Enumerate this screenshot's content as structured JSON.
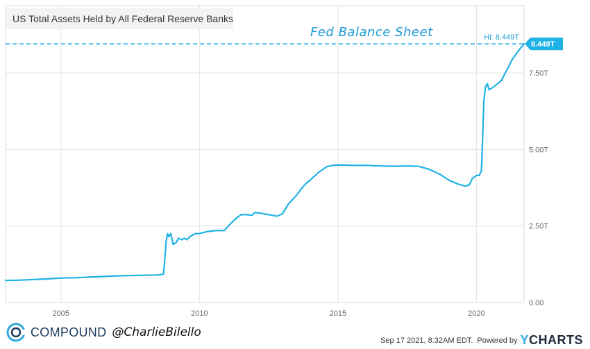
{
  "chart_data": {
    "type": "line",
    "title": "US Total Assets Held by All Federal Reserve Banks",
    "annotation": "Fed Balance Sheet",
    "xlim": [
      2003.0,
      2021.72
    ],
    "ylim": [
      0,
      9.7
    ],
    "x_ticks": [
      2005,
      2010,
      2015,
      2020
    ],
    "x_tick_labels": [
      "2005",
      "2010",
      "2015",
      "2020"
    ],
    "y_ticks": [
      0,
      2.5,
      5.0,
      7.5
    ],
    "y_tick_labels": [
      "0.00",
      "2.50T",
      "5.00T",
      "7.50T"
    ],
    "grid": true,
    "line_color": "#1fb2e6",
    "high": {
      "value": 8.449,
      "label": "Hi: 8.449T",
      "end_label": "8.449T"
    },
    "series": [
      {
        "x": [
          2003.0,
          2003.5,
          2004.0,
          2004.5,
          2005.0,
          2005.5,
          2006.0,
          2006.5,
          2007.0,
          2007.5,
          2008.0,
          2008.5,
          2008.7,
          2008.75,
          2008.8,
          2008.85,
          2008.9,
          2008.97,
          2009.05,
          2009.15,
          2009.25,
          2009.35,
          2009.45,
          2009.55,
          2009.65,
          2009.75,
          2009.85,
          2010.0,
          2010.3,
          2010.6,
          2010.9,
          2011.1,
          2011.3,
          2011.5,
          2011.7,
          2011.9,
          2012.0,
          2012.2,
          2012.5,
          2012.8,
          2013.0,
          2013.2,
          2013.5,
          2013.8,
          2014.0,
          2014.3,
          2014.6,
          2014.9,
          2015.2,
          2015.5,
          2016.0,
          2016.5,
          2017.0,
          2017.5,
          2017.9,
          2018.3,
          2018.7,
          2019.0,
          2019.3,
          2019.6,
          2019.75,
          2019.85,
          2020.0,
          2020.1,
          2020.18,
          2020.22,
          2020.27,
          2020.33,
          2020.4,
          2020.45,
          2020.55,
          2020.7,
          2020.9,
          2021.1,
          2021.3,
          2021.5,
          2021.72
        ],
        "values": [
          0.72,
          0.73,
          0.75,
          0.77,
          0.8,
          0.81,
          0.83,
          0.85,
          0.87,
          0.88,
          0.89,
          0.9,
          0.93,
          1.4,
          2.0,
          2.25,
          2.15,
          2.25,
          1.9,
          1.95,
          2.1,
          2.05,
          2.1,
          2.05,
          2.15,
          2.2,
          2.25,
          2.25,
          2.32,
          2.35,
          2.35,
          2.55,
          2.73,
          2.87,
          2.87,
          2.85,
          2.94,
          2.92,
          2.87,
          2.82,
          2.9,
          3.2,
          3.5,
          3.85,
          4.0,
          4.25,
          4.44,
          4.49,
          4.49,
          4.48,
          4.48,
          4.46,
          4.45,
          4.46,
          4.45,
          4.35,
          4.18,
          4.0,
          3.88,
          3.8,
          3.85,
          4.05,
          4.15,
          4.15,
          4.3,
          5.2,
          6.6,
          7.05,
          7.15,
          6.95,
          7.0,
          7.1,
          7.25,
          7.6,
          7.95,
          8.2,
          8.449
        ]
      }
    ]
  },
  "footer": {
    "brand": "COMPOUND",
    "handle": "@CharlieBilello",
    "timestamp": "Sep 17 2021, 8:32AM EDT.",
    "powered_by": "Powered by",
    "provider_y": "Y",
    "provider_rest": "CHARTS"
  }
}
